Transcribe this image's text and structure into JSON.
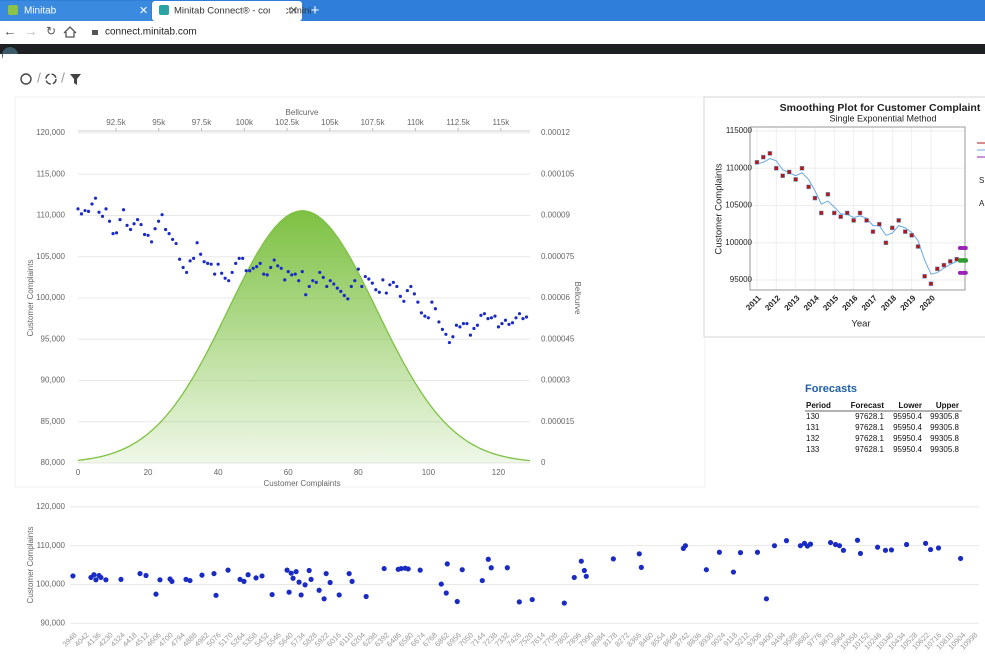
{
  "browser": {
    "tabs": [
      "Minitab",
      "Minitab Connect® - connect.mini"
    ],
    "url": "connect.minitab.com"
  },
  "main_chart": {
    "type": "scatter",
    "top_axis_label": "Bellcurve",
    "right_axis_label": "Bellcurve",
    "x_label": "Customer Complaints",
    "y_label": "Customer Complaints",
    "color": "#1a2bc4",
    "values": [
      110800,
      110200,
      110600,
      110500,
      111400,
      112100,
      110400,
      109900,
      110800,
      109300,
      107800,
      107900,
      109500,
      110700,
      108800,
      108300,
      109000,
      109500,
      108900,
      107700,
      107600,
      106800,
      108400,
      109300,
      110100,
      108300,
      107800,
      107100,
      106600,
      104700,
      103700,
      103100,
      104500,
      104800,
      106700,
      105300,
      104400,
      104200,
      104100,
      102900,
      104100,
      103000,
      102400,
      102100,
      103100,
      104200,
      104800,
      104800,
      103300,
      103300,
      103600,
      103800,
      104200,
      102900,
      102800,
      103700,
      104600,
      103900,
      103600,
      102200,
      103200,
      102800,
      102900,
      102100,
      103200,
      100400,
      101400,
      102100,
      101900,
      103100,
      102500,
      101400,
      102100,
      101700,
      101200,
      100800,
      100300,
      99900,
      101400,
      102100,
      103500,
      101400,
      102600,
      102300,
      101800,
      101000,
      100700,
      102200,
      100600,
      101600,
      101900,
      101400,
      100200,
      99600,
      100900,
      101400,
      100500,
      99500,
      98200,
      97800,
      97600,
      99500,
      98700,
      97100,
      96200,
      95600,
      94600,
      95300,
      96700,
      96500,
      96900,
      96900,
      95500,
      96300,
      96700,
      97900,
      98100,
      97500,
      97600,
      97800,
      96500,
      96900,
      97300,
      96800,
      97000,
      97600,
      98100,
      97500,
      97700
    ],
    "xlim": [
      0,
      129
    ],
    "xticks": [
      0,
      20,
      40,
      60,
      80,
      100,
      120
    ],
    "ylim": [
      80000,
      120000
    ],
    "yticks": [
      {
        "value": 80000,
        "label": "80,000"
      },
      {
        "value": 85000,
        "label": "85,000"
      },
      {
        "value": 90000,
        "label": "90,000"
      },
      {
        "value": 95000,
        "label": "95,000"
      },
      {
        "value": 100000,
        "label": "100,000"
      },
      {
        "value": 105000,
        "label": "105,000"
      },
      {
        "value": 110000,
        "label": "110,000"
      },
      {
        "value": 115000,
        "label": "115,000"
      },
      {
        "value": 120000,
        "label": "120,000"
      }
    ],
    "top_xlim": [
      90280,
      116700
    ],
    "top_xticks": [
      {
        "value": 92500,
        "label": "92.5k"
      },
      {
        "value": 95000,
        "label": "95k"
      },
      {
        "value": 97500,
        "label": "97.5k"
      },
      {
        "value": 100000,
        "label": "100k"
      },
      {
        "value": 102500,
        "label": "102.5k"
      },
      {
        "value": 105000,
        "label": "105k"
      },
      {
        "value": 107500,
        "label": "107.5k"
      },
      {
        "value": 110000,
        "label": "110k"
      },
      {
        "value": 112500,
        "label": "112.5k"
      },
      {
        "value": 115000,
        "label": "115k"
      }
    ],
    "y2lim": [
      0,
      0.00012
    ],
    "y2ticks": [
      0,
      1.5e-05,
      3e-05,
      4.5e-05,
      6e-05,
      7.5e-05,
      9e-05,
      0.000105,
      0.00012
    ],
    "grid": true,
    "bellcurve": {
      "mean": 103400,
      "sd": 4350,
      "color": "#7dc142"
    }
  },
  "smoothing_plot": {
    "type": "line",
    "title": "Smoothing Plot for Customer Complaint",
    "subtitle": "Single Exponential Method",
    "x_label": "Year",
    "y_label": "Customer Complaints",
    "x": [
      2011,
      2011.33,
      2011.67,
      2012,
      2012.33,
      2012.67,
      2013,
      2013.33,
      2013.67,
      2014,
      2014.33,
      2014.67,
      2015,
      2015.33,
      2015.67,
      2016,
      2016.33,
      2016.67,
      2017,
      2017.33,
      2017.67,
      2018,
      2018.33,
      2018.67,
      2019,
      2019.33,
      2019.67,
      2020,
      2020.33,
      2020.67,
      2021,
      2021.33
    ],
    "series": [
      {
        "color": "#b01818",
        "values": [
          110800,
          111500,
          112000,
          110000,
          109000,
          109500,
          108500,
          110000,
          107500,
          106000,
          104000,
          106500,
          104000,
          103500,
          104000,
          103000,
          104000,
          103000,
          101500,
          102500,
          100000,
          102000,
          103000,
          101500,
          101000,
          99500,
          95500,
          94500,
          96500,
          97000,
          97500,
          97800
        ]
      },
      {
        "color": "#6aa8e0",
        "values": [
          110600,
          110800,
          111300,
          111000,
          109800,
          109400,
          109000,
          109400,
          108500,
          107000,
          105200,
          105600,
          104800,
          103900,
          103800,
          103400,
          103600,
          103300,
          102300,
          102300,
          101000,
          101300,
          102300,
          102000,
          101400,
          100300,
          97700,
          95800,
          96000,
          96600,
          97100,
          97500
        ]
      }
    ],
    "xlim": [
      2010.64,
      2021.76
    ],
    "xticks": [
      2011,
      2012,
      2013,
      2014,
      2015,
      2016,
      2017,
      2018,
      2019,
      2020
    ],
    "ylim": [
      93660,
      115540
    ],
    "yticks": [
      95000,
      100000,
      105000,
      110000,
      115000
    ],
    "forecast_x": [
      2021.5,
      2021.6,
      2021.7,
      2021.8
    ],
    "forecast_color": "#2e9b2e",
    "limit_color": "#9b22b8",
    "legend_fragments": [
      "S",
      "A"
    ],
    "grid": true
  },
  "forecasts": {
    "title": "Forecasts",
    "columns": [
      "Period",
      "Forecast",
      "Lower",
      "Upper"
    ],
    "rows": [
      [
        130,
        97628.1,
        95950.4,
        99305.8
      ],
      [
        131,
        97628.1,
        95950.4,
        99305.8
      ],
      [
        132,
        97628.1,
        95950.4,
        99305.8
      ],
      [
        133,
        97628.1,
        95950.4,
        99305.8
      ]
    ]
  },
  "bottom_chart": {
    "type": "scatter",
    "y_label": "Customer Complaints",
    "color": "#1a2bc4",
    "x": [
      3948,
      4089,
      4112,
      4128,
      4152,
      4167,
      4206,
      4324,
      4473,
      4520,
      4598,
      4629,
      4708,
      4723,
      4833,
      4864,
      4958,
      5052,
      5068,
      5162,
      5256,
      5287,
      5319,
      5381,
      5428,
      5507,
      5624,
      5640,
      5656,
      5671,
      5695,
      5718,
      5734,
      5765,
      5797,
      5812,
      5875,
      5914,
      5930,
      5961,
      6032,
      6110,
      6133,
      6243,
      6384,
      6494,
      6517,
      6549,
      6572,
      6666,
      6831,
      6870,
      6878,
      6956,
      6995,
      7152,
      7199,
      7222,
      7348,
      7442,
      7543,
      7794,
      7872,
      7927,
      7951,
      7966,
      8178,
      8381,
      8397,
      8726,
      8742,
      8906,
      9008,
      9118,
      9173,
      9306,
      9376,
      9439,
      9533,
      9642,
      9674,
      9697,
      9721,
      9878,
      9917,
      9948,
      9979,
      10089,
      10112,
      10246,
      10308,
      10355,
      10473,
      10622,
      10661,
      10723,
      10896
    ],
    "values": [
      102200,
      101800,
      102500,
      101200,
      102300,
      101800,
      101200,
      101300,
      102800,
      102300,
      97500,
      101200,
      101400,
      100800,
      101300,
      101000,
      102400,
      102800,
      97200,
      103700,
      101300,
      100800,
      102500,
      101700,
      102200,
      97400,
      103700,
      98000,
      102900,
      101600,
      103300,
      100600,
      97300,
      99900,
      103600,
      101300,
      98500,
      96300,
      102800,
      100500,
      97300,
      102800,
      100800,
      96900,
      104100,
      103900,
      104100,
      104200,
      104000,
      103700,
      100100,
      97800,
      105300,
      95600,
      103800,
      101000,
      106500,
      104300,
      104300,
      95500,
      96100,
      95200,
      101800,
      106000,
      103600,
      102100,
      106600,
      107900,
      104400,
      109300,
      110000,
      103800,
      108300,
      103200,
      108200,
      108300,
      96300,
      110000,
      111300,
      110000,
      110600,
      109900,
      110400,
      110800,
      110300,
      110000,
      108800,
      111400,
      108000,
      109600,
      108800,
      108900,
      110300,
      110600,
      109000,
      109400,
      106700
    ],
    "xlim": [
      3925,
      11040
    ],
    "xticks": [
      3948,
      4042,
      4136,
      4230,
      4324,
      4418,
      4512,
      4606,
      4700,
      4794,
      4888,
      4982,
      5076,
      5170,
      5264,
      5358,
      5452,
      5546,
      5640,
      5734,
      5828,
      5922,
      6016,
      6110,
      6204,
      6298,
      6392,
      6486,
      6580,
      6674,
      6768,
      6862,
      6956,
      7050,
      7144,
      7238,
      7332,
      7426,
      7520,
      7614,
      7708,
      7802,
      7896,
      7990,
      8084,
      8178,
      8272,
      8366,
      8460,
      8554,
      8648,
      8742,
      8836,
      8930,
      9024,
      9118,
      9212,
      9306,
      9400,
      9494,
      9588,
      9682,
      9776,
      9870,
      9964,
      10058,
      10152,
      10246,
      10340,
      10434,
      10528,
      10622,
      10716,
      10810,
      10904,
      10998
    ],
    "ylim": [
      88000,
      121000
    ],
    "yticks": [
      {
        "value": 90000,
        "label": "90,000"
      },
      {
        "value": 100000,
        "label": "100,000"
      },
      {
        "value": 110000,
        "label": "110,000"
      },
      {
        "value": 120000,
        "label": "120,000"
      }
    ],
    "grid": true
  }
}
